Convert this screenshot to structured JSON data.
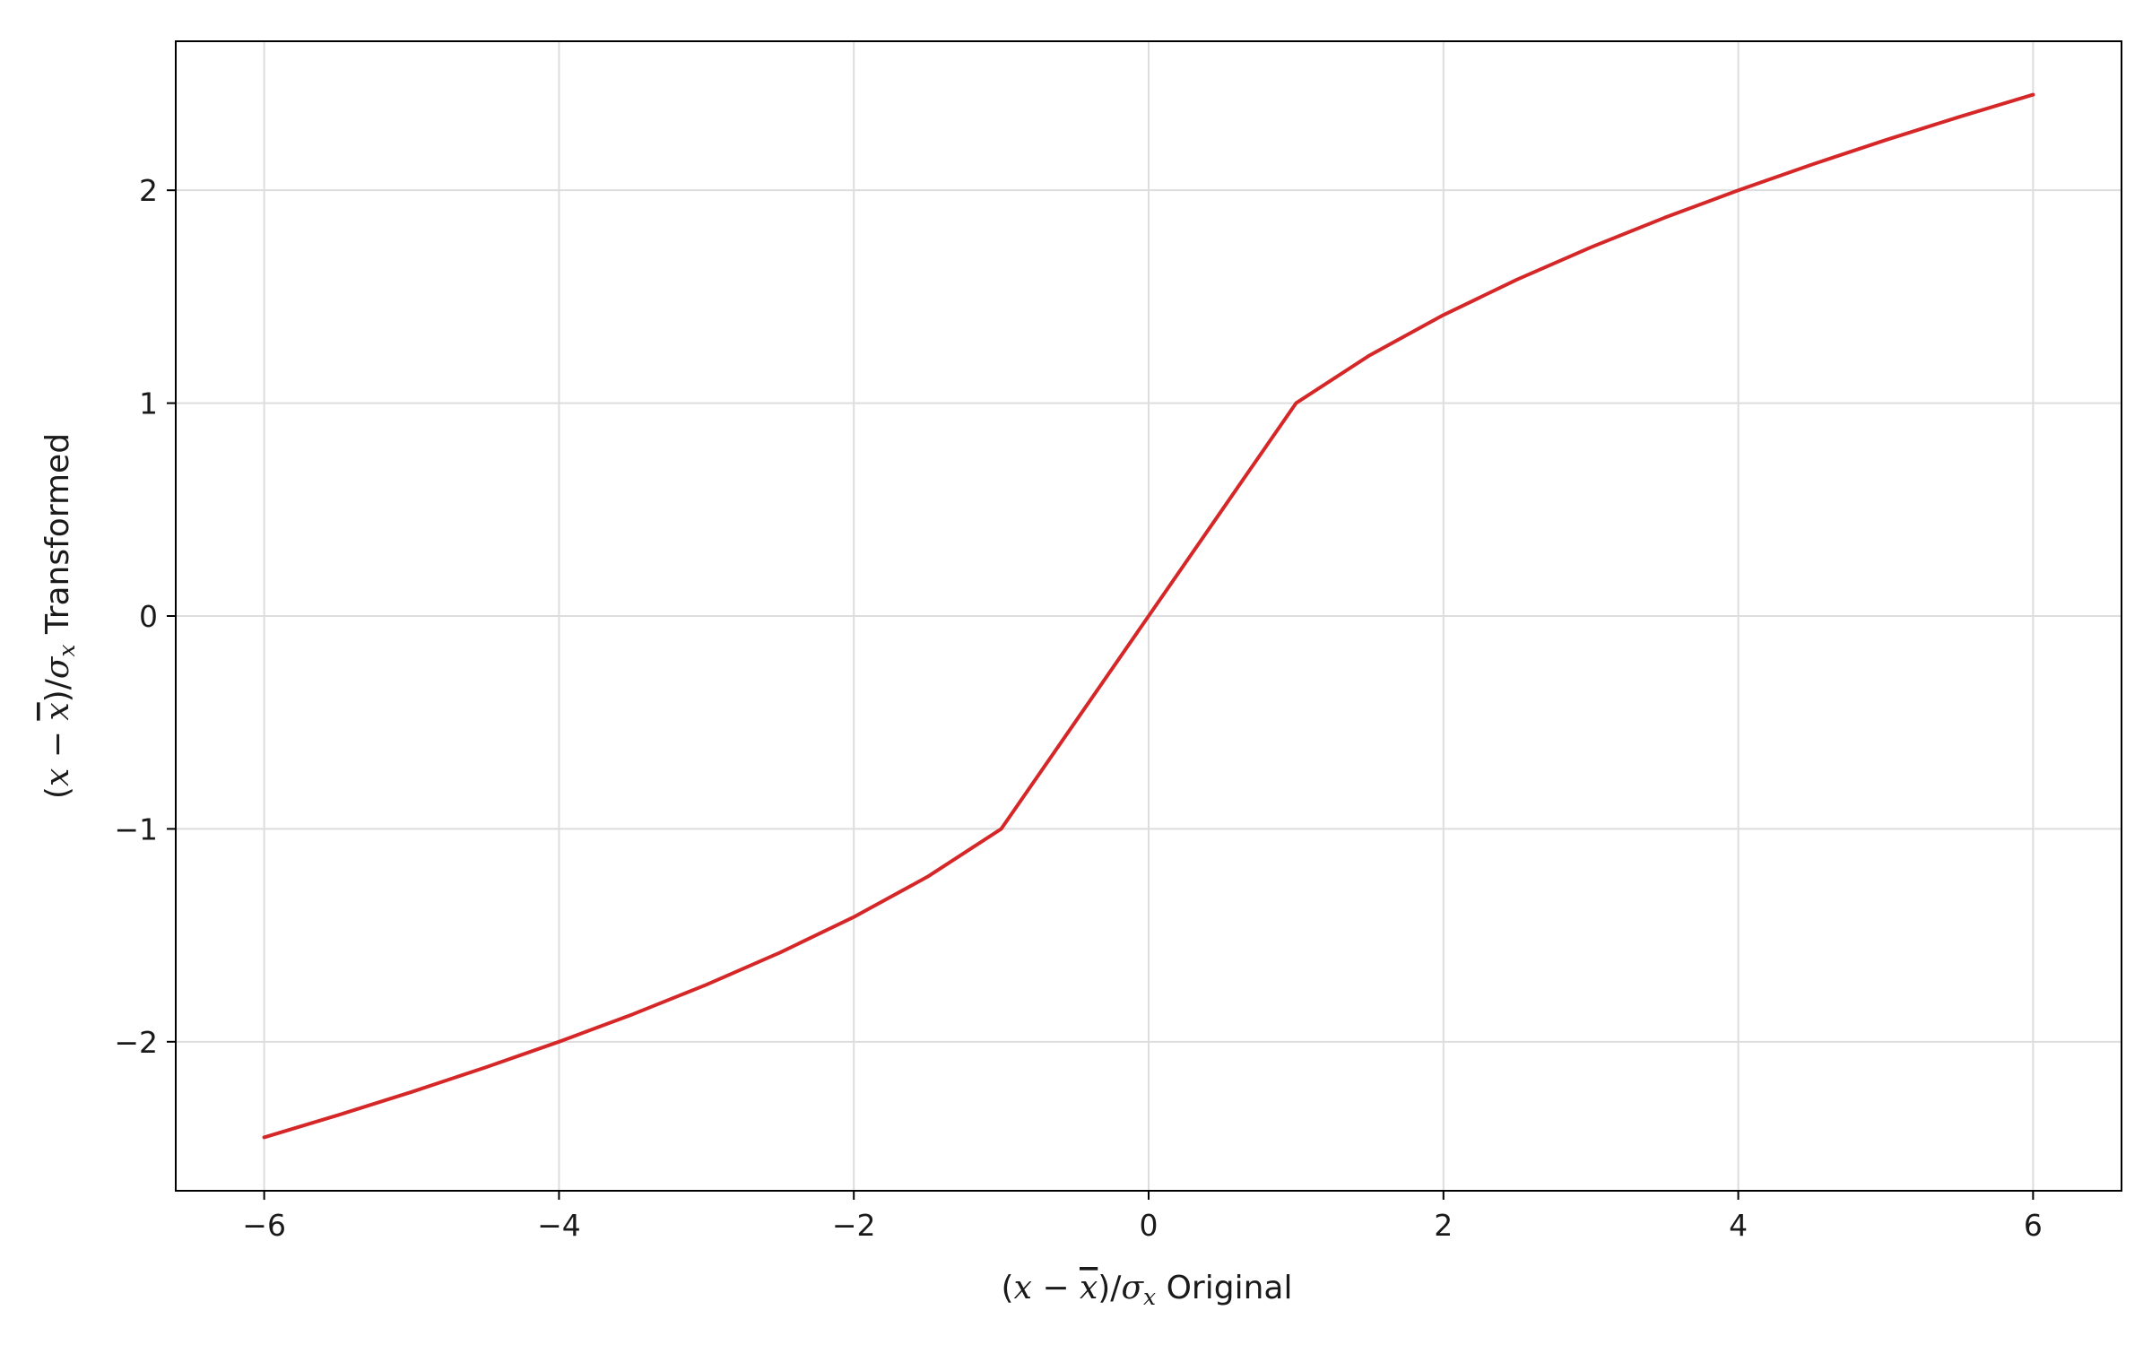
{
  "chart_data": {
    "type": "line",
    "title": "",
    "xlabel": {
      "open": "(",
      "var": "x",
      "minus": " − ",
      "bar_var": "x",
      "close_div": ")/",
      "sigma": "σ",
      "sub": "x",
      "suffix": " Original"
    },
    "ylabel": {
      "open": "(",
      "var": "x",
      "minus": " − ",
      "bar_var": "x",
      "close_div": ")/",
      "sigma": "σ",
      "sub": "x",
      "suffix": " Transformed"
    },
    "xlim": [
      -6.6,
      6.6
    ],
    "ylim": [
      -2.7,
      2.7
    ],
    "x_ticks": [
      -6,
      -4,
      -2,
      0,
      2,
      4,
      6
    ],
    "x_tick_labels": [
      "−6",
      "−4",
      "−2",
      "0",
      "2",
      "4",
      "6"
    ],
    "y_ticks": [
      -2,
      -1,
      0,
      1,
      2
    ],
    "y_tick_labels": [
      "−2",
      "−1",
      "0",
      "1",
      "2"
    ],
    "grid": true,
    "legend": "none",
    "series": [
      {
        "color": "#d62728",
        "x": [
          -6,
          -5.5,
          -5,
          -4.5,
          -4,
          -3.5,
          -3,
          -2.5,
          -2,
          -1.5,
          -1,
          -0.5,
          0,
          0.5,
          1,
          1.5,
          2,
          2.5,
          3,
          3.5,
          4,
          4.5,
          5,
          5.5,
          6
        ],
        "y": [
          -2.449,
          -2.345,
          -2.236,
          -2.121,
          -2.0,
          -1.871,
          -1.732,
          -1.581,
          -1.414,
          -1.225,
          -1.0,
          -0.5,
          0.0,
          0.5,
          1.0,
          1.225,
          1.414,
          1.581,
          1.732,
          1.871,
          2.0,
          2.121,
          2.236,
          2.345,
          2.449
        ]
      }
    ]
  },
  "colors": {
    "line": "#d62728",
    "grid": "#dddddd",
    "axes": "#000000"
  }
}
